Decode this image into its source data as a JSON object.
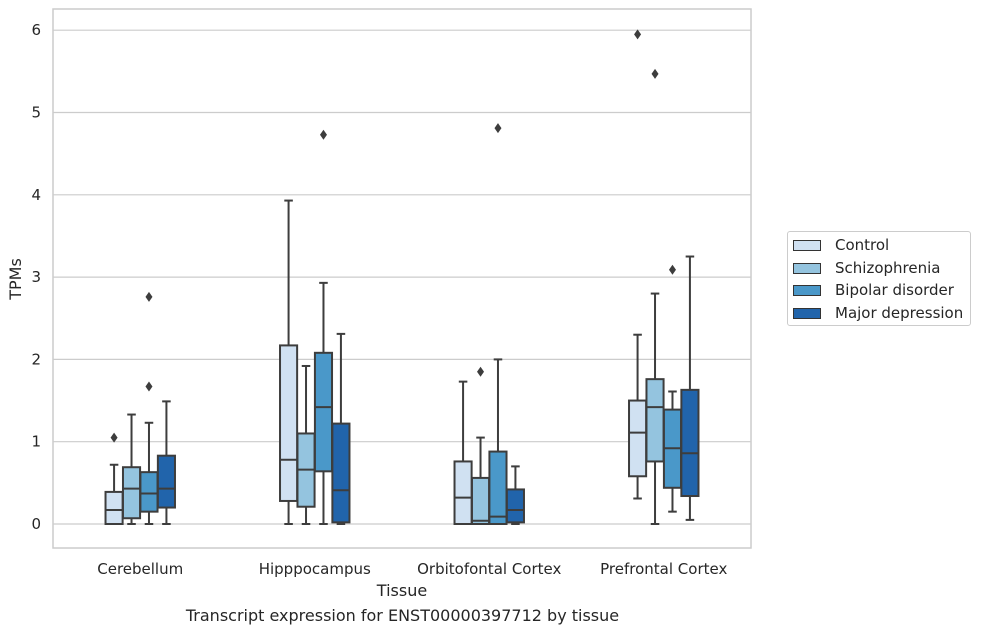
{
  "chart_data": {
    "type": "box",
    "xlabel": "Tissue",
    "ylabel": "TPMs",
    "ylim": [
      -0.3,
      6.25
    ],
    "yticks": [
      0,
      1,
      2,
      3,
      4,
      5,
      6
    ],
    "grid": "horizontal",
    "legend_position": "right",
    "categories": [
      "Cerebellum",
      "Hipppocampus",
      "Orbitofontal Cortex",
      "Prefrontal Cortex"
    ],
    "series": [
      {
        "name": "Control",
        "color": "#d0e1f2",
        "boxes": [
          {
            "min": 0.0,
            "q1": 0.0,
            "median": 0.17,
            "q3": 0.39,
            "max": 0.72,
            "outliers": [
              1.05
            ]
          },
          {
            "min": 0.0,
            "q1": 0.28,
            "median": 0.78,
            "q3": 2.17,
            "max": 3.93,
            "outliers": []
          },
          {
            "min": 0.0,
            "q1": 0.0,
            "median": 0.32,
            "q3": 0.76,
            "max": 1.73,
            "outliers": []
          },
          {
            "min": 0.31,
            "q1": 0.58,
            "median": 1.11,
            "q3": 1.5,
            "max": 2.3,
            "outliers": [
              5.95
            ]
          }
        ]
      },
      {
        "name": "Schizophrenia",
        "color": "#94c4df",
        "boxes": [
          {
            "min": 0.0,
            "q1": 0.07,
            "median": 0.43,
            "q3": 0.69,
            "max": 1.33,
            "outliers": []
          },
          {
            "min": 0.0,
            "q1": 0.21,
            "median": 0.66,
            "q3": 1.1,
            "max": 1.92,
            "outliers": []
          },
          {
            "min": 0.0,
            "q1": 0.0,
            "median": 0.04,
            "q3": 0.56,
            "max": 1.05,
            "outliers": [
              1.85
            ]
          },
          {
            "min": 0.0,
            "q1": 0.76,
            "median": 1.42,
            "q3": 1.76,
            "max": 2.8,
            "outliers": [
              5.47
            ]
          }
        ]
      },
      {
        "name": "Bipolar disorder",
        "color": "#4a98c9",
        "boxes": [
          {
            "min": 0.0,
            "q1": 0.15,
            "median": 0.37,
            "q3": 0.63,
            "max": 1.23,
            "outliers": [
              1.67,
              2.76
            ]
          },
          {
            "min": 0.0,
            "q1": 0.64,
            "median": 1.42,
            "q3": 2.08,
            "max": 2.93,
            "outliers": [
              4.73
            ]
          },
          {
            "min": 0.0,
            "q1": 0.0,
            "median": 0.09,
            "q3": 0.88,
            "max": 2.0,
            "outliers": [
              4.81
            ]
          },
          {
            "min": 0.15,
            "q1": 0.44,
            "median": 0.92,
            "q3": 1.39,
            "max": 1.61,
            "outliers": [
              3.09
            ]
          }
        ]
      },
      {
        "name": "Major depression",
        "color": "#2164ab",
        "boxes": [
          {
            "min": 0.0,
            "q1": 0.2,
            "median": 0.43,
            "q3": 0.83,
            "max": 1.49,
            "outliers": []
          },
          {
            "min": 0.0,
            "q1": 0.02,
            "median": 0.41,
            "q3": 1.22,
            "max": 2.31,
            "outliers": []
          },
          {
            "min": 0.0,
            "q1": 0.02,
            "median": 0.17,
            "q3": 0.42,
            "max": 0.7,
            "outliers": []
          },
          {
            "min": 0.05,
            "q1": 0.34,
            "median": 0.86,
            "q3": 1.63,
            "max": 3.25,
            "outliers": []
          }
        ]
      }
    ]
  },
  "caption": "Transcript expression for ENST00000397712 by tissue"
}
